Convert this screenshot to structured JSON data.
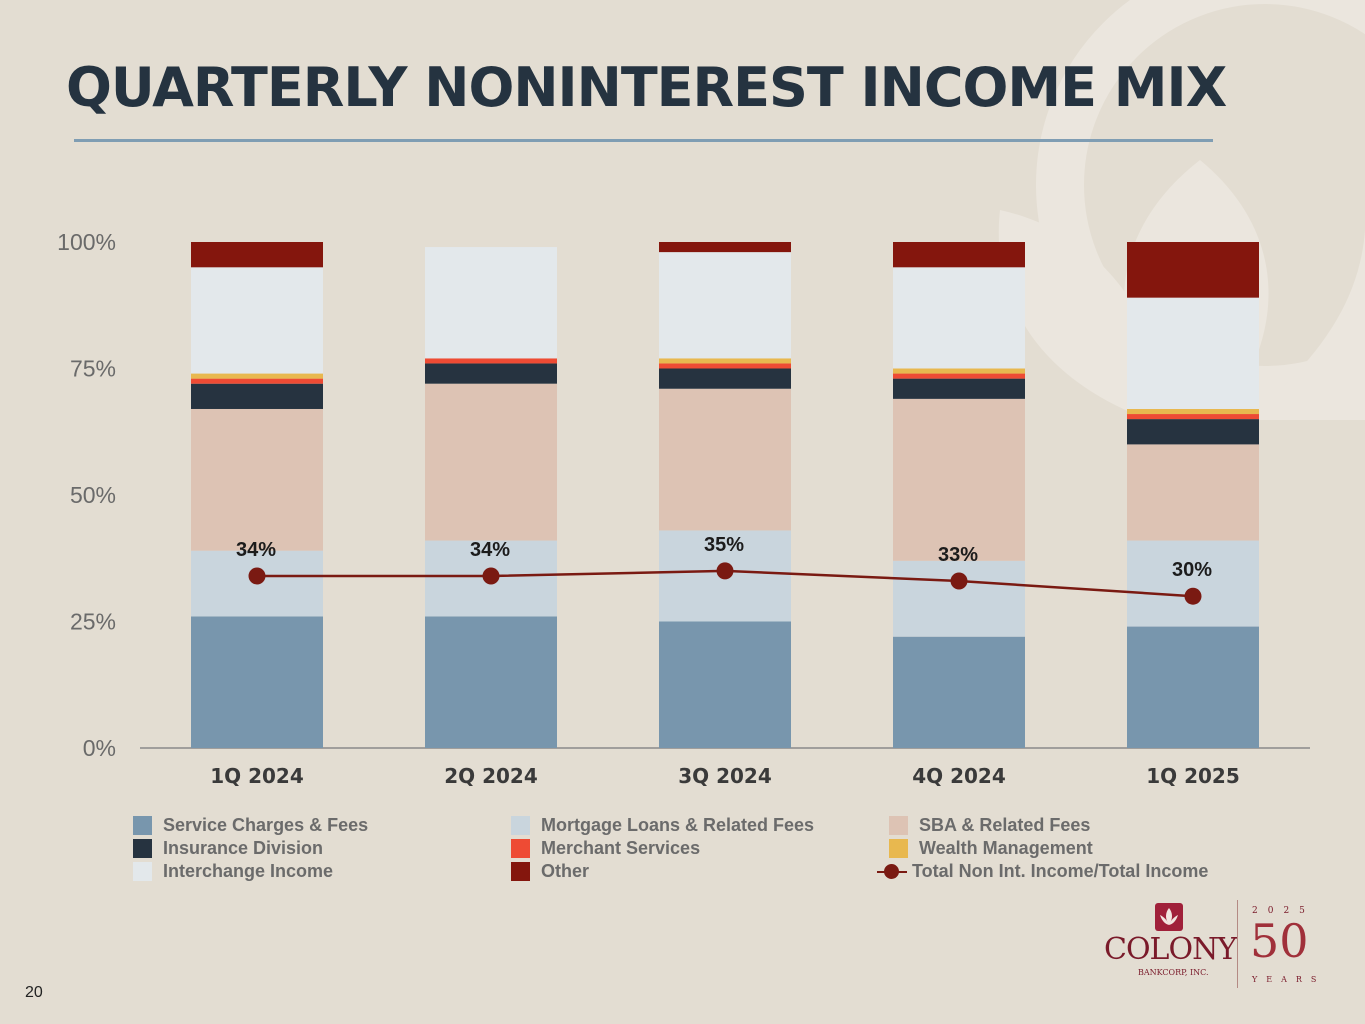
{
  "title": "QUARTERLY NONINTEREST INCOME MIX",
  "page_number": "20",
  "logo": {
    "name": "COLONY",
    "sub": "BANKCORP, INC.",
    "anniversary_year": "2025",
    "anniversary_number": "50",
    "anniversary_word": "YEARS"
  },
  "colors": {
    "background": "#e3ddd2",
    "title": "#253340",
    "series": [
      "#7896ad",
      "#c9d5dd",
      "#ddc3b4",
      "#263340",
      "#ee4b34",
      "#e8b84f",
      "#e3e8eb",
      "#84160d"
    ],
    "line": "#7a1a12"
  },
  "legend": [
    "Service Charges & Fees",
    "Mortgage Loans &  Related Fees",
    "SBA & Related Fees",
    "Insurance Division",
    "Merchant Services",
    "Wealth Management",
    "Interchange Income",
    "Other",
    "Total Non Int. Income/Total Income"
  ],
  "chart_data": {
    "type": "bar",
    "stacked": true,
    "title": "QUARTERLY NONINTEREST INCOME MIX",
    "categories": [
      "1Q 2024",
      "2Q 2024",
      "3Q 2024",
      "4Q 2024",
      "1Q 2025"
    ],
    "y_ticks": [
      "0%",
      "25%",
      "50%",
      "75%",
      "100%"
    ],
    "ylim": [
      0,
      100
    ],
    "series": [
      {
        "name": "Service Charges & Fees",
        "values": [
          26,
          26,
          25,
          22,
          24
        ]
      },
      {
        "name": "Mortgage Loans &  Related Fees",
        "values": [
          13,
          15,
          18,
          15,
          17
        ]
      },
      {
        "name": "SBA & Related Fees",
        "values": [
          28,
          31,
          28,
          32,
          19
        ]
      },
      {
        "name": "Insurance Division",
        "values": [
          5,
          4,
          4,
          4,
          5
        ]
      },
      {
        "name": "Merchant Services",
        "values": [
          1,
          1,
          1,
          1,
          1
        ]
      },
      {
        "name": "Wealth Management",
        "values": [
          1,
          0,
          1,
          1,
          1
        ]
      },
      {
        "name": "Interchange Income",
        "values": [
          21,
          22,
          21,
          20,
          22
        ]
      },
      {
        "name": "Other",
        "values": [
          5,
          0,
          2,
          5,
          11
        ]
      }
    ],
    "line_series": {
      "name": "Total Non Int. Income/Total Income",
      "values": [
        34,
        34,
        35,
        33,
        30
      ],
      "labels": [
        "34%",
        "34%",
        "35%",
        "33%",
        "30%"
      ]
    },
    "legend_position": "bottom"
  }
}
